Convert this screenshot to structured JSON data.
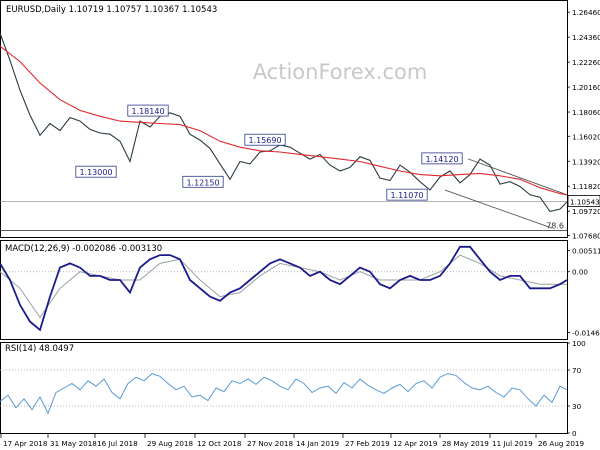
{
  "chart_data": [
    {
      "type": "line",
      "title": "EURUSD,Daily  1.10719 1.10757 1.10367 1.10543",
      "watermark": "ActionForex.com",
      "ylim": [
        1.0755,
        1.274
      ],
      "y_ticks": [
        "1.26460",
        "1.24360",
        "1.22260",
        "1.20160",
        "1.18060",
        "1.16020",
        "1.13920",
        "1.11820",
        "1.09720",
        "1.07680"
      ],
      "y_tick_values": [
        1.2646,
        1.2436,
        1.2226,
        1.2016,
        1.1806,
        1.1602,
        1.1392,
        1.1182,
        1.0972,
        1.0768
      ],
      "last_price_label": "1.10543",
      "last_price": 1.10543,
      "fib_label": "78.6",
      "fib_level": 1.081,
      "price_x": [
        0,
        10,
        20,
        30,
        40,
        50,
        60,
        70,
        80,
        90,
        100,
        110,
        120,
        130,
        140,
        150,
        160,
        170,
        180,
        190,
        200,
        210,
        220,
        230,
        240,
        250,
        260,
        270,
        280,
        290,
        300,
        310,
        320,
        330,
        340,
        350,
        360,
        370,
        380,
        390,
        400,
        410,
        420,
        430,
        440,
        450,
        460,
        470,
        480,
        490,
        500,
        510,
        520,
        530,
        540,
        550,
        560,
        567
      ],
      "price": [
        1.247,
        1.224,
        1.199,
        1.178,
        1.161,
        1.171,
        1.165,
        1.176,
        1.173,
        1.166,
        1.163,
        1.162,
        1.156,
        1.139,
        1.173,
        1.168,
        1.177,
        1.18,
        1.177,
        1.162,
        1.157,
        1.15,
        1.137,
        1.124,
        1.139,
        1.137,
        1.147,
        1.148,
        1.153,
        1.151,
        1.146,
        1.141,
        1.145,
        1.136,
        1.131,
        1.134,
        1.143,
        1.14,
        1.125,
        1.123,
        1.136,
        1.13,
        1.122,
        1.115,
        1.126,
        1.131,
        1.121,
        1.128,
        1.141,
        1.136,
        1.12,
        1.122,
        1.118,
        1.111,
        1.109,
        1.097,
        1.099,
        1.105
      ],
      "ma_x": [
        0,
        20,
        40,
        60,
        80,
        100,
        120,
        140,
        160,
        180,
        200,
        220,
        240,
        260,
        280,
        300,
        320,
        340,
        360,
        380,
        400,
        420,
        440,
        460,
        480,
        500,
        520,
        540,
        560,
        567
      ],
      "ma": [
        1.236,
        1.223,
        1.205,
        1.191,
        1.182,
        1.177,
        1.173,
        1.172,
        1.171,
        1.17,
        1.165,
        1.156,
        1.151,
        1.148,
        1.147,
        1.145,
        1.143,
        1.141,
        1.139,
        1.135,
        1.131,
        1.128,
        1.127,
        1.128,
        1.129,
        1.127,
        1.124,
        1.117,
        1.112,
        1.111
      ],
      "labels": [
        {
          "text": "1.18140",
          "x": 148,
          "y": 1.1814
        },
        {
          "text": "1.13000",
          "x": 96,
          "y": 1.13
        },
        {
          "text": "1.15690",
          "x": 265,
          "y": 1.1569
        },
        {
          "text": "1.12150",
          "x": 203,
          "y": 1.1215
        },
        {
          "text": "1.14120",
          "x": 442,
          "y": 1.1412
        },
        {
          "text": "1.11070",
          "x": 407,
          "y": 1.1107
        }
      ],
      "channel": [
        {
          "x1": 468,
          "y1": 1.1412,
          "x2": 567,
          "y2": 1.111
        },
        {
          "x1": 445,
          "y1": 1.115,
          "x2": 552,
          "y2": 1.083
        }
      ]
    },
    {
      "type": "line",
      "title": "MACD(12,26,9) -0.002086 -0.003130",
      "ylim": [
        -0.0162,
        0.0074
      ],
      "y_ticks": [
        "0.005114",
        "0.00",
        "-0.014647"
      ],
      "y_tick_values": [
        0.005114,
        0.0,
        -0.014647
      ],
      "series": [
        {
          "x": [
            0,
            10,
            20,
            30,
            40,
            50,
            60,
            70,
            80,
            90,
            100,
            110,
            120,
            130,
            140,
            150,
            160,
            170,
            180,
            190,
            200,
            210,
            220,
            230,
            240,
            250,
            260,
            270,
            280,
            290,
            300,
            310,
            320,
            330,
            340,
            350,
            360,
            370,
            380,
            390,
            400,
            410,
            420,
            430,
            440,
            450,
            460,
            470,
            480,
            490,
            500,
            510,
            520,
            530,
            540,
            550,
            560,
            567
          ],
          "values": [
            0.002,
            -0.002,
            -0.008,
            -0.012,
            -0.014,
            -0.006,
            0.001,
            0.002,
            0.001,
            -0.001,
            -0.001,
            -0.002,
            -0.002,
            -0.005,
            0.001,
            0.003,
            0.004,
            0.004,
            0.003,
            -0.002,
            -0.004,
            -0.006,
            -0.007,
            -0.005,
            -0.004,
            -0.002,
            0.0,
            0.002,
            0.003,
            0.002,
            0.001,
            -0.001,
            0.0,
            -0.002,
            -0.003,
            -0.001,
            0.001,
            0.0,
            -0.003,
            -0.004,
            -0.002,
            -0.001,
            -0.002,
            -0.002,
            -0.001,
            0.002,
            0.006,
            0.006,
            0.003,
            0.0,
            -0.002,
            -0.001,
            -0.001,
            -0.004,
            -0.004,
            -0.004,
            -0.003,
            -0.002
          ]
        },
        {
          "x": [
            0,
            20,
            40,
            60,
            80,
            100,
            120,
            140,
            160,
            180,
            200,
            220,
            240,
            260,
            280,
            300,
            320,
            340,
            360,
            380,
            400,
            420,
            440,
            460,
            480,
            500,
            520,
            540,
            560,
            567
          ],
          "values": [
            0.0,
            -0.004,
            -0.011,
            -0.004,
            0.0,
            -0.001,
            -0.002,
            -0.002,
            0.002,
            0.003,
            -0.002,
            -0.006,
            -0.005,
            -0.001,
            0.002,
            0.001,
            0.0,
            -0.002,
            0.0,
            -0.002,
            -0.002,
            -0.002,
            0.0,
            0.004,
            0.002,
            -0.001,
            -0.002,
            -0.003,
            -0.003,
            -0.003
          ]
        }
      ]
    },
    {
      "type": "line",
      "title": "RSI(14) 48.0497",
      "ylim": [
        0,
        100
      ],
      "y_ticks": [
        "100",
        "70",
        "30",
        "0"
      ],
      "y_tick_values": [
        100,
        70,
        30,
        0
      ],
      "x": [
        0,
        8,
        16,
        24,
        32,
        40,
        48,
        56,
        64,
        72,
        80,
        88,
        96,
        104,
        112,
        120,
        128,
        136,
        144,
        152,
        160,
        168,
        176,
        184,
        192,
        200,
        208,
        216,
        224,
        232,
        240,
        248,
        256,
        264,
        272,
        280,
        288,
        296,
        304,
        312,
        320,
        328,
        336,
        344,
        352,
        360,
        368,
        376,
        384,
        392,
        400,
        408,
        416,
        424,
        432,
        440,
        448,
        456,
        464,
        472,
        480,
        488,
        496,
        504,
        512,
        520,
        528,
        536,
        544,
        552,
        560,
        567
      ],
      "values": [
        35,
        42,
        28,
        38,
        26,
        40,
        22,
        45,
        50,
        55,
        48,
        58,
        52,
        60,
        45,
        38,
        55,
        62,
        58,
        66,
        63,
        55,
        48,
        52,
        40,
        42,
        36,
        50,
        46,
        58,
        55,
        60,
        54,
        62,
        58,
        52,
        48,
        60,
        55,
        45,
        50,
        52,
        44,
        56,
        50,
        60,
        53,
        48,
        44,
        50,
        54,
        46,
        55,
        58,
        50,
        62,
        66,
        64,
        56,
        50,
        48,
        52,
        45,
        40,
        50,
        48,
        38,
        30,
        42,
        34,
        52,
        48
      ],
      "x_ticks": [
        "17 Apr 2018",
        "31 May 2018",
        "16 Jul 2018",
        "29 Aug 2018",
        "12 Oct 2018",
        "27 Nov 2018",
        "14 Jan 2019",
        "27 Feb 2019",
        "12 Apr 2019",
        "28 May 2019",
        "11 Jul 2019",
        "26 Aug 2019"
      ],
      "x_tick_positions": [
        1,
        48,
        95,
        145,
        195,
        245,
        294,
        343,
        391,
        440,
        490,
        536
      ]
    }
  ],
  "colors": {
    "price": "#2a3b43",
    "ma": "#e0282d",
    "macd": "#1a1a8c",
    "signal": "#9aa0a6",
    "rsi": "#5b9bd5",
    "axis": "#000000",
    "grid_dotted": "#9aa0a6",
    "watermark": "#c8c8c8"
  }
}
